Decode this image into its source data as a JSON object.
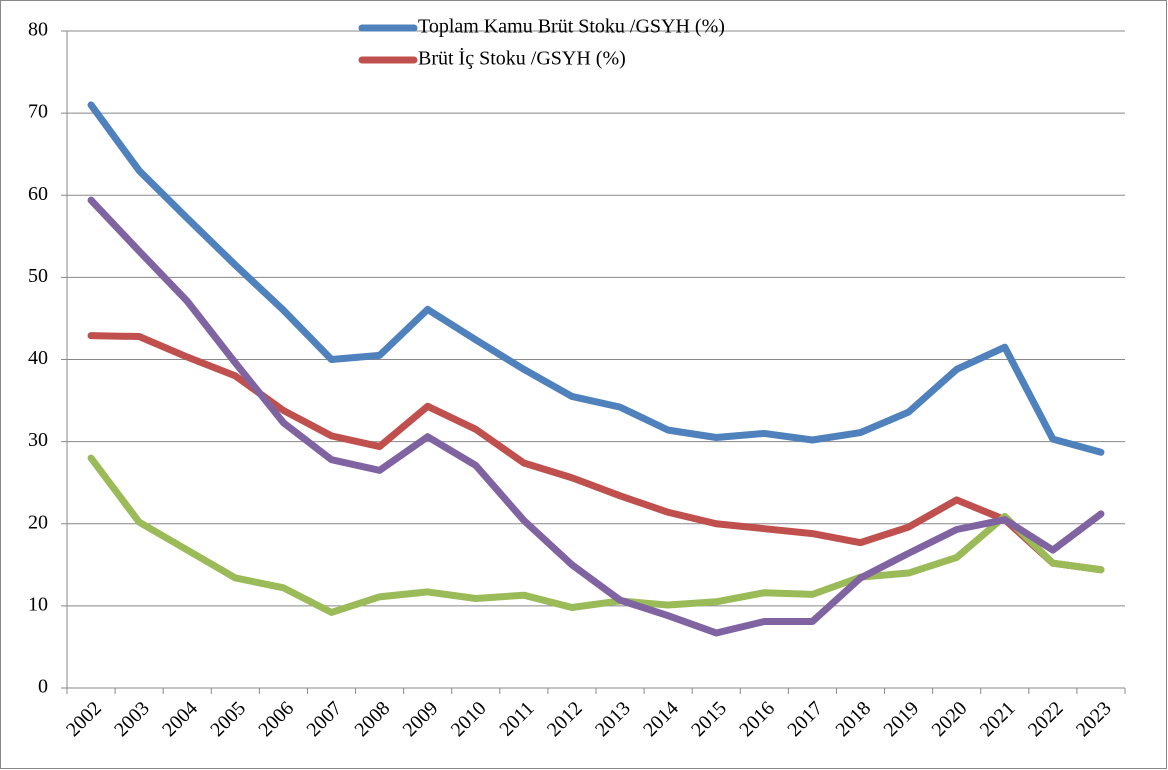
{
  "chart_data": {
    "type": "line",
    "categories": [
      "2002",
      "2003",
      "2004",
      "2005",
      "2006",
      "2007",
      "2008",
      "2009",
      "2010",
      "2011",
      "2012",
      "2013",
      "2014",
      "2015",
      "2016",
      "2017",
      "2018",
      "2019",
      "2020",
      "2021",
      "2022",
      "2023"
    ],
    "series": [
      {
        "name": "Toplam Kamu Brüt Stoku /GSYH (%)",
        "color": "#4f81bd",
        "values": [
          71,
          63,
          57.2,
          51.5,
          46,
          40,
          40.5,
          46.1,
          42.4,
          38.8,
          35.5,
          34.2,
          31.4,
          30.5,
          31,
          30.2,
          31.1,
          33.6,
          38.8,
          41.5,
          30.3,
          28.7
        ]
      },
      {
        "name": "Brüt İç Stoku /GSYH (%)",
        "color": "#c0504d",
        "values": [
          42.9,
          42.8,
          40.3,
          38,
          33.8,
          30.7,
          29.4,
          34.3,
          31.5,
          27.4,
          25.6,
          23.4,
          21.4,
          20,
          19.4,
          18.8,
          17.7,
          19.6,
          22.9,
          20.5,
          15.2,
          14.4
        ]
      },
      {
        "color": "#9bbb59",
        "values": [
          28,
          20.2,
          16.8,
          13.4,
          12.2,
          9.2,
          11.1,
          11.7,
          10.9,
          11.3,
          9.8,
          10.6,
          10.1,
          10.5,
          11.6,
          11.4,
          13.5,
          14,
          15.9,
          20.9,
          15.2,
          14.4
        ]
      },
      {
        "color": "#8064a2",
        "values": [
          59.4,
          53.2,
          47.1,
          39.6,
          32.3,
          27.8,
          26.5,
          30.6,
          27.1,
          20.4,
          15,
          10.7,
          8.8,
          6.7,
          8.1,
          8.1,
          13.4,
          16.4,
          19.3,
          20.5,
          16.8,
          21.2
        ]
      }
    ],
    "ylim": [
      0,
      80
    ],
    "yticks": [
      0,
      10,
      20,
      30,
      40,
      50,
      60,
      70,
      80
    ],
    "grid": true,
    "legend": "top"
  }
}
